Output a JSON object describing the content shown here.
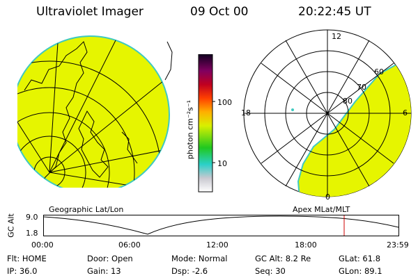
{
  "header": {
    "instrument": "Ultraviolet Imager",
    "date": "09 Oct 00",
    "time": "20:22:45 UT"
  },
  "colorbar": {
    "unit_label": "photon cm⁻²s⁻¹",
    "tick_100": "100",
    "tick_10": "10"
  },
  "polar_plot": {
    "labels": {
      "top": "12",
      "left": "18",
      "right": "6",
      "bottom": "0"
    },
    "lat_labels": [
      "80",
      "70",
      "60"
    ],
    "fill_color": "#e6f500"
  },
  "globe": {
    "fill_color": "#e6f500"
  },
  "timeline": {
    "left_title": "Geographic Lat/Lon",
    "right_title": "Apex MLat/MLT",
    "y_axis_label": "GC Alt",
    "y_ticks": [
      "9.0",
      "1.8"
    ],
    "x_ticks": [
      "00:00",
      "06:00",
      "12:00",
      "18:00",
      "23:59"
    ],
    "marker_color": "#cc0000"
  },
  "footer": {
    "row1": [
      {
        "label": "Flt:",
        "value": "HOME"
      },
      {
        "label": "Door:",
        "value": "Open"
      },
      {
        "label": "Mode:",
        "value": "Normal"
      },
      {
        "label": "GC Alt:",
        "value": "8.2 Re"
      },
      {
        "label": "GLat:",
        "value": "61.8"
      }
    ],
    "row2": [
      {
        "label": "IP:",
        "value": "36.0"
      },
      {
        "label": "Gain:",
        "value": "13"
      },
      {
        "label": "Dsp:",
        "value": "-2.6"
      },
      {
        "label": "Seq:",
        "value": "30"
      },
      {
        "label": "GLon:",
        "value": "89.1"
      }
    ]
  }
}
